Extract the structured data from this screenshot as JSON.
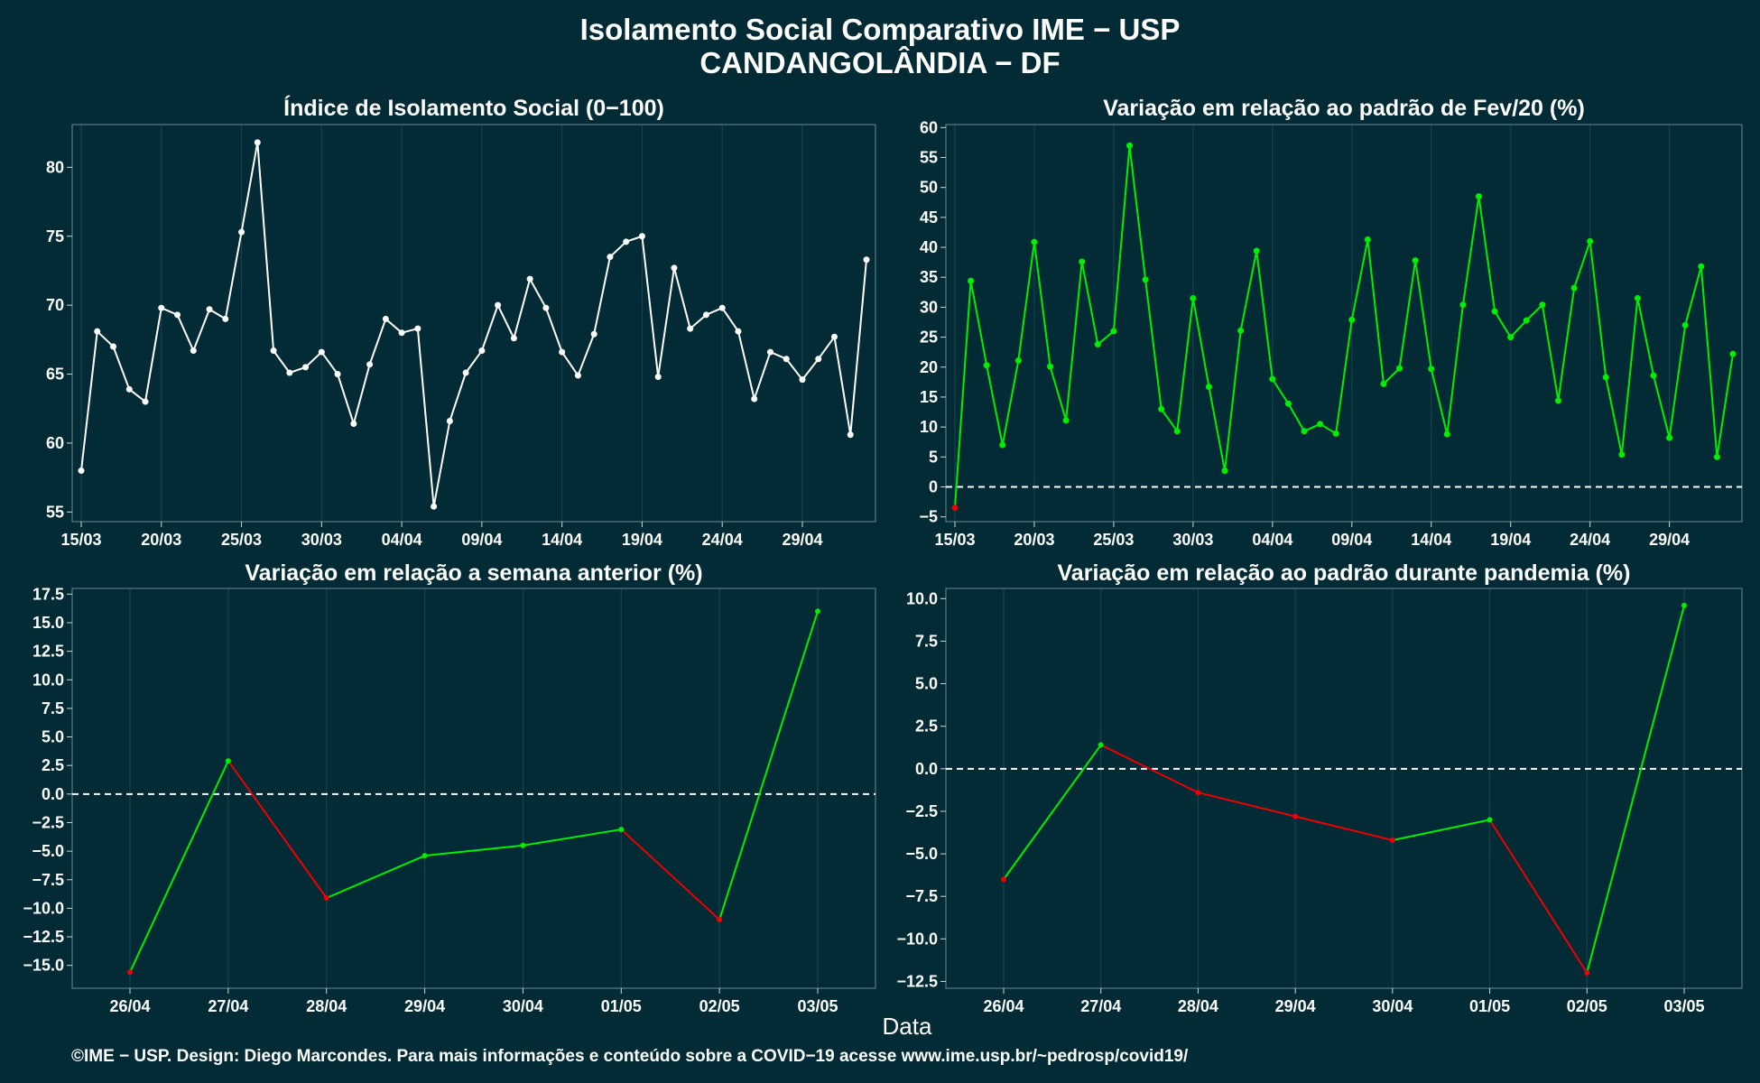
{
  "header": {
    "title_line1": "Isolamento Social Comparativo IME − USP",
    "title_line2": "CANDANGOLÂNDIA − DF"
  },
  "xlabel": "Data",
  "footer": "©IME − USP. Design: Diego Marcondes. Para mais informações e conteúdo sobre a COVID−19 acesse www.ime.usp.br/~pedrosp/covid19/",
  "colors": {
    "background": "#022b36",
    "grid": "#1d4552",
    "line_white": "#ffffff",
    "green": "#00ee00",
    "red": "#ee0000"
  },
  "chart_data": [
    {
      "id": "isolamento",
      "type": "line",
      "title": "Índice de Isolamento Social (0−100)",
      "color_mode": "white",
      "x_start": "2020-03-15",
      "x_tick_labels": [
        "15/03",
        "20/03",
        "25/03",
        "30/03",
        "04/04",
        "09/04",
        "14/04",
        "19/04",
        "24/04",
        "29/04"
      ],
      "ylim": [
        54.3,
        83.1
      ],
      "yticks": [
        55,
        60,
        65,
        70,
        75,
        80
      ],
      "y_tick_labels": [
        "55",
        "60",
        "65",
        "70",
        "75",
        "80"
      ],
      "zero_line": false,
      "values": [
        58.0,
        68.1,
        67.0,
        63.9,
        63.0,
        69.8,
        69.3,
        66.7,
        69.7,
        69.0,
        75.3,
        81.8,
        66.7,
        65.1,
        65.5,
        66.6,
        65.0,
        61.4,
        65.7,
        69.0,
        68.0,
        68.3,
        55.4,
        61.6,
        65.1,
        66.7,
        70.0,
        67.6,
        71.9,
        69.8,
        66.6,
        64.9,
        67.9,
        73.5,
        74.6,
        75.0,
        64.8,
        72.7,
        68.3,
        69.3,
        69.8,
        68.1,
        63.2,
        66.6,
        66.1,
        64.6,
        66.1,
        67.7,
        60.6,
        73.3
      ]
    },
    {
      "id": "variacao-fev",
      "type": "line",
      "title": "Variação em relação ao padrão de Fev/20 (%)",
      "color_mode": "sign",
      "x_start": "2020-03-15",
      "x_tick_labels": [
        "15/03",
        "20/03",
        "25/03",
        "30/03",
        "04/04",
        "09/04",
        "14/04",
        "19/04",
        "24/04",
        "29/04"
      ],
      "ylim": [
        -5.8,
        60.5
      ],
      "yticks": [
        -5,
        0,
        5,
        10,
        15,
        20,
        25,
        30,
        35,
        40,
        45,
        50,
        55,
        60
      ],
      "y_tick_labels": [
        "−5",
        "0",
        "5",
        "10",
        "15",
        "20",
        "25",
        "30",
        "35",
        "40",
        "45",
        "50",
        "55",
        "60"
      ],
      "zero_line": true,
      "values": [
        -3.5,
        34.4,
        20.3,
        7.0,
        21.1,
        40.9,
        20.1,
        11.1,
        37.6,
        23.8,
        26.0,
        57.0,
        34.6,
        13.0,
        9.3,
        31.5,
        16.7,
        2.7,
        26.1,
        39.4,
        18.0,
        13.9,
        9.3,
        10.5,
        8.9,
        27.9,
        41.3,
        17.2,
        19.8,
        37.8,
        19.7,
        8.8,
        30.4,
        48.5,
        29.3,
        25.0,
        27.8,
        30.4,
        14.4,
        33.2,
        41.0,
        18.3,
        5.4,
        31.5,
        18.6,
        8.2,
        27.0,
        36.8,
        5.0,
        22.2
      ]
    },
    {
      "id": "semana-anterior",
      "type": "line",
      "title": "Variação em relação a semana anterior (%)",
      "color_mode": "direction",
      "categories": [
        "26/04",
        "27/04",
        "28/04",
        "29/04",
        "30/04",
        "01/05",
        "02/05",
        "03/05"
      ],
      "ylim": [
        -17.0,
        18.0
      ],
      "yticks": [
        -15,
        -12.5,
        -10,
        -7.5,
        -5,
        -2.5,
        0,
        2.5,
        5,
        7.5,
        10,
        12.5,
        15,
        17.5
      ],
      "y_tick_labels": [
        "−15.0",
        "−12.5",
        "−10.0",
        "−7.5",
        "−5.0",
        "−2.5",
        "0.0",
        "2.5",
        "5.0",
        "7.5",
        "10.0",
        "12.5",
        "15.0",
        "17.5"
      ],
      "zero_line": true,
      "values": [
        -15.6,
        2.9,
        -9.1,
        -5.4,
        -4.5,
        -3.1,
        -11.0,
        16.0
      ]
    },
    {
      "id": "padrao-pandemia",
      "type": "line",
      "title": "Variação em relação ao padrão durante pandemia (%)",
      "color_mode": "direction",
      "categories": [
        "26/04",
        "27/04",
        "28/04",
        "29/04",
        "30/04",
        "01/05",
        "02/05",
        "03/05"
      ],
      "ylim": [
        -12.9,
        10.6
      ],
      "yticks": [
        -12.5,
        -10,
        -7.5,
        -5,
        -2.5,
        0,
        2.5,
        5,
        7.5,
        10
      ],
      "y_tick_labels": [
        "−12.5",
        "−10.0",
        "−7.5",
        "−5.0",
        "−2.5",
        "0.0",
        "2.5",
        "5.0",
        "7.5",
        "10.0"
      ],
      "zero_line": true,
      "values": [
        -6.5,
        1.4,
        -1.4,
        -2.8,
        -4.2,
        -3.0,
        -12.0,
        9.6
      ]
    }
  ]
}
